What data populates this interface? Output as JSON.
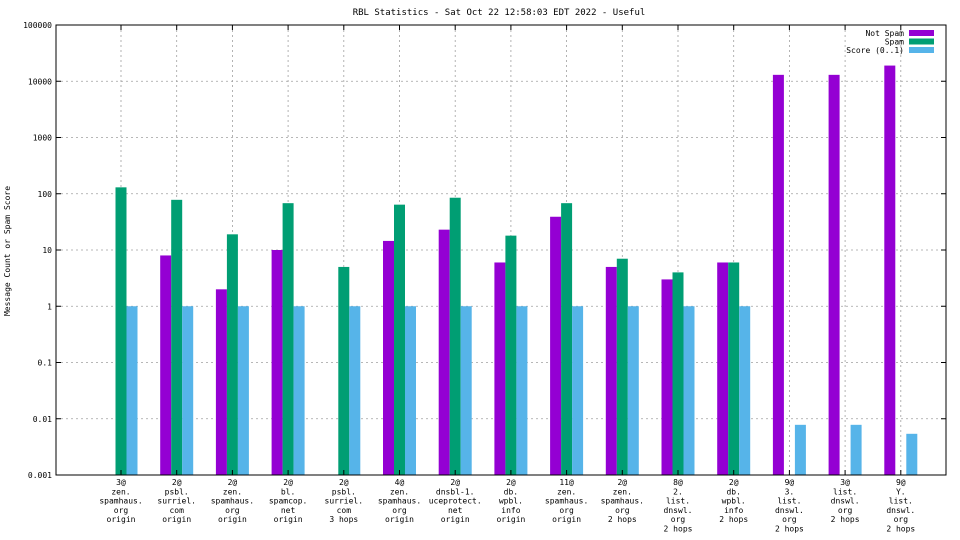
{
  "chart_data": {
    "type": "bar",
    "title": "RBL Statistics - Sat Oct 22 12:58:03 EDT 2022 - Useful",
    "xlabel": "",
    "ylabel": "Message Count or Spam Score",
    "yscale": "log",
    "ylim": [
      0.001,
      100000
    ],
    "yticks": [
      {
        "value": 0.001,
        "label": "0.001"
      },
      {
        "value": 0.01,
        "label": "0.01"
      },
      {
        "value": 0.1,
        "label": "0.1"
      },
      {
        "value": 1,
        "label": "1"
      },
      {
        "value": 10,
        "label": "10"
      },
      {
        "value": 100,
        "label": "100"
      },
      {
        "value": 1000,
        "label": "1000"
      },
      {
        "value": 10000,
        "label": "10000"
      },
      {
        "value": 100000,
        "label": "100000"
      }
    ],
    "grid": true,
    "legend_position": "top-right",
    "categories": [
      [
        "3@",
        "zen.",
        "spamhaus.",
        "org",
        "origin"
      ],
      [
        "2@",
        "psbl.",
        "surriel.",
        "com",
        "origin"
      ],
      [
        "2@",
        "zen.",
        "spamhaus.",
        "org",
        "origin"
      ],
      [
        "2@",
        "bl.",
        "spamcop.",
        "net",
        "origin"
      ],
      [
        "2@",
        "psbl.",
        "surriel.",
        "com",
        "3 hops"
      ],
      [
        "4@",
        "zen.",
        "spamhaus.",
        "org",
        "origin"
      ],
      [
        "2@",
        "dnsbl-1.",
        "uceprotect.",
        "net",
        "origin"
      ],
      [
        "2@",
        "db.",
        "wpbl.",
        "info",
        "origin"
      ],
      [
        "11@",
        "zen.",
        "spamhaus.",
        "org",
        "origin"
      ],
      [
        "2@",
        "zen.",
        "spamhaus.",
        "org",
        "2 hops"
      ],
      [
        "8@",
        "2.",
        "list.",
        "dnswl.",
        "org",
        "2 hops"
      ],
      [
        "2@",
        "db.",
        "wpbl.",
        "info",
        "2 hops"
      ],
      [
        "9@",
        "3.",
        "list.",
        "dnswl.",
        "org",
        "2 hops"
      ],
      [
        "3@",
        "list.",
        "dnswl.",
        "org",
        "2 hops"
      ],
      [
        "9@",
        "Y.",
        "list.",
        "dnswl.",
        "org",
        "2 hops"
      ]
    ],
    "series": [
      {
        "name": "Not Spam",
        "color": "#9400d3",
        "values": [
          null,
          8,
          2,
          10,
          null,
          14.5,
          23,
          6,
          39,
          5,
          3,
          6,
          13000,
          13000,
          19000
        ]
      },
      {
        "name": "Spam",
        "color": "#009e73",
        "values": [
          130,
          78,
          19,
          68,
          5,
          64,
          85,
          18,
          68,
          7,
          4,
          6,
          null,
          null,
          null
        ]
      },
      {
        "name": "Score (0..1)",
        "color": "#56b4e9",
        "values": [
          1,
          1,
          1,
          1,
          1,
          1,
          1,
          1,
          1,
          1,
          1,
          1,
          0.0078,
          0.0078,
          0.0054
        ]
      }
    ]
  }
}
